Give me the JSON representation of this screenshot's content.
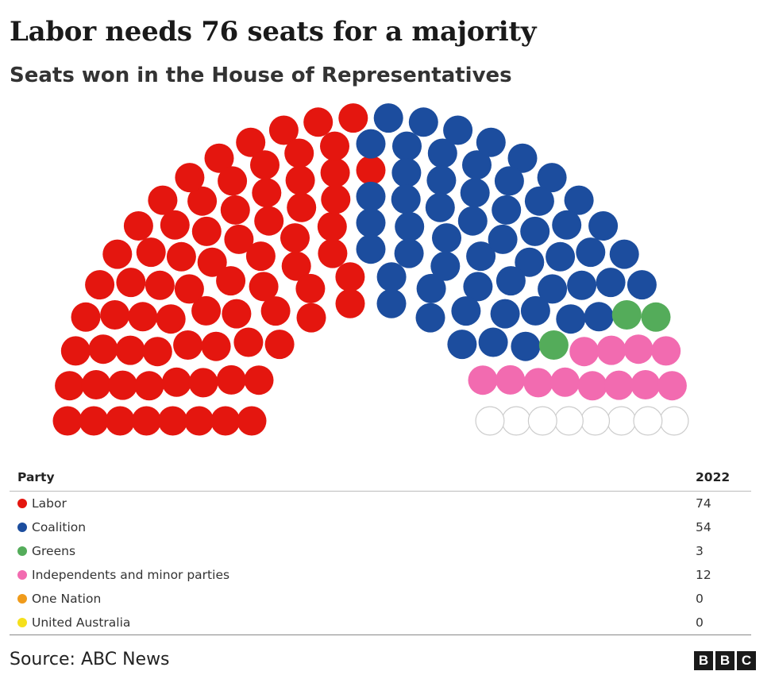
{
  "title": "Labor needs 76 seats for a majority",
  "subtitle": "Seats won in the House of Representatives",
  "chart_data": {
    "type": "parliament",
    "total_seats": 151,
    "series": [
      {
        "name": "Labor",
        "value": 74,
        "color": "#e4160f"
      },
      {
        "name": "Coalition",
        "value": 54,
        "color": "#1c4d9e"
      },
      {
        "name": "Greens",
        "value": 3,
        "color": "#54ac5a"
      },
      {
        "name": "Independents and minor parties",
        "value": 12,
        "color": "#f26bb0"
      },
      {
        "name": "One Nation",
        "value": 0,
        "color": "#f09b1b"
      },
      {
        "name": "United Australia",
        "value": 0,
        "color": "#f5e01c"
      }
    ],
    "undeclared_color": "#ffffff"
  },
  "table": {
    "party_header": "Party",
    "year_header": "2022"
  },
  "source": "Source: ABC News",
  "logo": [
    "B",
    "B",
    "C"
  ]
}
